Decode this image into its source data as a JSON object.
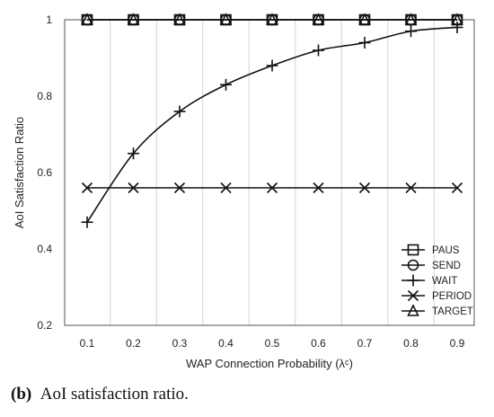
{
  "chart_data": {
    "type": "line",
    "xlabel": "WAP Connection Probability (λᶜ)",
    "ylabel": "AoI Satisfaction Ratio",
    "x": [
      0.1,
      0.2,
      0.3,
      0.4,
      0.5,
      0.6,
      0.7,
      0.8,
      0.9
    ],
    "x_tick_labels": [
      "0.1",
      "0.2",
      "0.3",
      "0.4",
      "0.5",
      "0.6",
      "0.7",
      "0.8",
      "0.9"
    ],
    "ylim": [
      0.2,
      1.0
    ],
    "y_ticks": [
      0.2,
      0.4,
      0.6,
      0.8,
      1.0
    ],
    "y_tick_labels": [
      "0.2",
      "0.4",
      "0.6",
      "0.8",
      "1"
    ],
    "grid": "vertical",
    "legend_position": "bottom-right",
    "series": [
      {
        "name": "PAUS",
        "marker": "square",
        "values": [
          1,
          1,
          1,
          1,
          1,
          1,
          1,
          1,
          1
        ]
      },
      {
        "name": "SEND",
        "marker": "circle",
        "values": [
          1,
          1,
          1,
          1,
          1,
          1,
          1,
          1,
          1
        ]
      },
      {
        "name": "WAIT",
        "marker": "plus",
        "values": [
          0.47,
          0.65,
          0.76,
          0.83,
          0.88,
          0.92,
          0.94,
          0.97,
          0.98
        ]
      },
      {
        "name": "PERIOD",
        "marker": "cross",
        "values": [
          0.56,
          0.56,
          0.56,
          0.56,
          0.56,
          0.56,
          0.56,
          0.56,
          0.56
        ]
      },
      {
        "name": "TARGET",
        "marker": "triangle",
        "values": [
          1,
          1,
          1,
          1,
          1,
          1,
          1,
          1,
          1
        ]
      }
    ]
  },
  "caption": {
    "label": "(b)",
    "text": "AoI satisfaction ratio."
  }
}
